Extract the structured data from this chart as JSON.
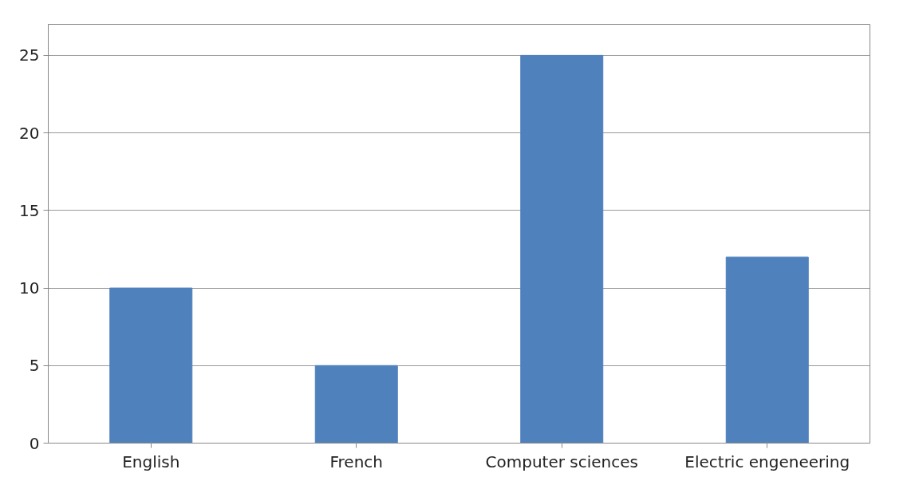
{
  "chart_data": {
    "type": "bar",
    "categories": [
      "English",
      "French",
      "Computer sciences",
      "Electric engeneering"
    ],
    "values": [
      10,
      5,
      25,
      12
    ],
    "color": "#4f81bd",
    "ylim": [
      0,
      27
    ],
    "yticks": [
      0,
      5,
      10,
      15,
      20,
      25
    ],
    "grid": "y"
  }
}
